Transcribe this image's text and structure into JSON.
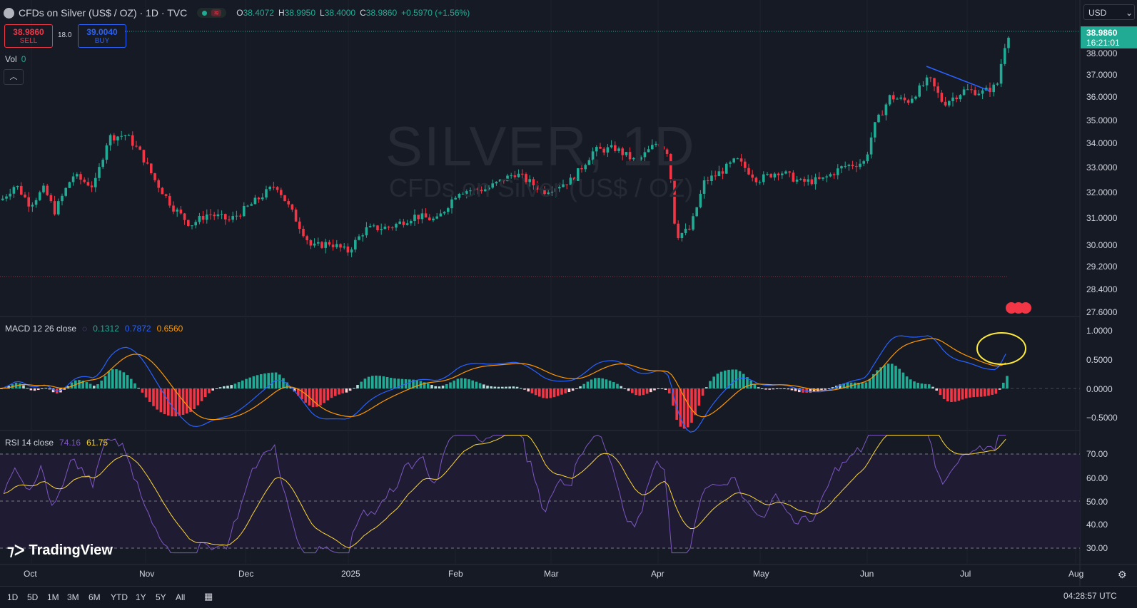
{
  "header": {
    "title": "CFDs on Silver (US$ / OZ) · 1D · TVC",
    "open_label": "O",
    "open": "38.4072",
    "high_label": "H",
    "high": "38.9950",
    "low_label": "L",
    "low": "38.4000",
    "close_label": "C",
    "close": "38.9860",
    "change": "+0.5970 (+1.56%)"
  },
  "trade": {
    "sell_price": "38.9860",
    "sell_label": "SELL",
    "spread": "18.0",
    "buy_price": "39.0040",
    "buy_label": "BUY"
  },
  "volume": {
    "label": "Vol",
    "value": "0"
  },
  "watermark": {
    "symbol": "SILVER, 1D",
    "description": "CFDs on Silver (US$ / OZ)"
  },
  "currency": "USD",
  "last_price": {
    "price": "38.9860",
    "countdown": "16:21:01"
  },
  "price_axis": [
    "38.0000",
    "37.0000",
    "36.0000",
    "35.0000",
    "34.0000",
    "33.0000",
    "32.0000",
    "31.0000",
    "30.0000",
    "29.2000",
    "28.4000",
    "27.6000"
  ],
  "macd": {
    "label": "MACD 12 26 close",
    "histogram": "0.1312",
    "macd": "0.7872",
    "signal": "0.6560",
    "axis": [
      "1.0000",
      "0.5000",
      "0.0000",
      "−0.5000"
    ]
  },
  "rsi": {
    "label": "RSI 14 close",
    "value": "74.16",
    "ma": "61.75",
    "axis": [
      "70.00",
      "60.00",
      "50.00",
      "40.00",
      "30.00"
    ]
  },
  "time_axis": [
    "Oct",
    "Nov",
    "Dec",
    "2025",
    "Feb",
    "Mar",
    "Apr",
    "May",
    "Jun",
    "Jul",
    "Aug"
  ],
  "logo": "TradingView",
  "timeframes": [
    "1D",
    "5D",
    "1M",
    "3M",
    "6M",
    "YTD",
    "1Y",
    "5Y",
    "All"
  ],
  "clock": "04:28:57 UTC",
  "colors": {
    "up": "#22ab94",
    "down": "#f23645",
    "macd": "#2962ff",
    "signal": "#ff9800",
    "rsi": "#7e57c2",
    "rsi_ma": "#fdd835",
    "background": "#161a25"
  },
  "icons": [
    "tradingview-logo-icon",
    "settings-gear-icon",
    "calendar-icon",
    "chevron-up-icon",
    "flag-icon"
  ]
}
